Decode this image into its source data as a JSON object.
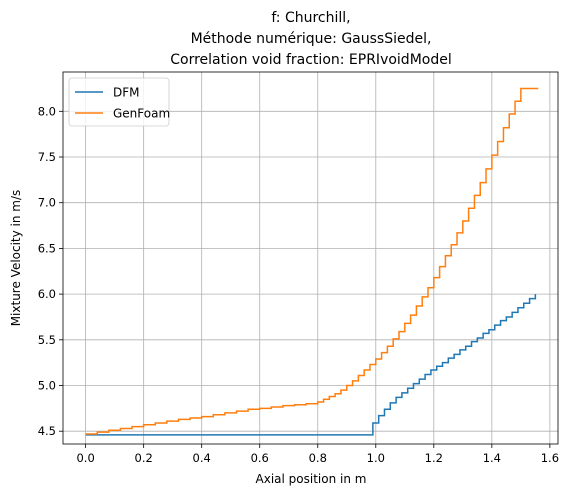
{
  "chart_data": {
    "type": "line",
    "title_lines": [
      "f: Churchill,",
      "Méthode numérique: GaussSiedel,",
      "Correlation void fraction: EPRIvoidModel"
    ],
    "xlabel": "Axial position in m",
    "ylabel": "Mixture Velocity in m/s",
    "xlim": [
      -0.078,
      1.628
    ],
    "ylim": [
      4.36,
      8.43
    ],
    "x_ticks": [
      "0.0",
      "0.2",
      "0.4",
      "0.6",
      "0.8",
      "1.0",
      "1.2",
      "1.4",
      "1.6"
    ],
    "x_tick_values": [
      0.0,
      0.2,
      0.4,
      0.6,
      0.8,
      1.0,
      1.2,
      1.4,
      1.6
    ],
    "y_ticks": [
      "4.5",
      "5.0",
      "5.5",
      "6.0",
      "6.5",
      "7.0",
      "7.5",
      "8.0"
    ],
    "y_tick_values": [
      4.5,
      5.0,
      5.5,
      6.0,
      6.5,
      7.0,
      7.5,
      8.0
    ],
    "grid": true,
    "legend_position": "top-left",
    "line_style": "steps",
    "series": [
      {
        "name": "DFM",
        "color": "#1f77b4",
        "x": [
          0.0,
          0.97,
          0.99,
          1.01,
          1.03,
          1.05,
          1.07,
          1.09,
          1.11,
          1.13,
          1.15,
          1.17,
          1.19,
          1.21,
          1.23,
          1.25,
          1.27,
          1.29,
          1.31,
          1.33,
          1.35,
          1.37,
          1.39,
          1.41,
          1.43,
          1.45,
          1.47,
          1.49,
          1.51,
          1.53,
          1.55
        ],
        "y": [
          4.46,
          4.46,
          4.59,
          4.67,
          4.74,
          4.81,
          4.87,
          4.92,
          4.97,
          5.02,
          5.07,
          5.12,
          5.17,
          5.21,
          5.25,
          5.3,
          5.34,
          5.39,
          5.43,
          5.48,
          5.52,
          5.57,
          5.61,
          5.66,
          5.71,
          5.75,
          5.8,
          5.85,
          5.9,
          5.95,
          6.0
        ]
      },
      {
        "name": "GenFoam",
        "color": "#ff7f0e",
        "x": [
          0.0,
          0.04,
          0.08,
          0.12,
          0.16,
          0.2,
          0.24,
          0.28,
          0.32,
          0.36,
          0.4,
          0.44,
          0.48,
          0.52,
          0.56,
          0.6,
          0.64,
          0.68,
          0.72,
          0.76,
          0.8,
          0.82,
          0.84,
          0.86,
          0.88,
          0.9,
          0.92,
          0.94,
          0.96,
          0.98,
          1.0,
          1.02,
          1.04,
          1.06,
          1.08,
          1.1,
          1.12,
          1.14,
          1.16,
          1.18,
          1.2,
          1.22,
          1.24,
          1.26,
          1.28,
          1.3,
          1.32,
          1.34,
          1.36,
          1.38,
          1.4,
          1.42,
          1.44,
          1.46,
          1.48,
          1.5,
          1.52,
          1.54,
          1.56
        ],
        "y": [
          4.47,
          4.49,
          4.51,
          4.53,
          4.55,
          4.57,
          4.59,
          4.61,
          4.63,
          4.645,
          4.66,
          4.68,
          4.7,
          4.72,
          4.74,
          4.75,
          4.765,
          4.78,
          4.79,
          4.8,
          4.82,
          4.85,
          4.88,
          4.91,
          4.95,
          5.0,
          5.05,
          5.11,
          5.17,
          5.23,
          5.29,
          5.36,
          5.43,
          5.51,
          5.59,
          5.68,
          5.77,
          5.87,
          5.97,
          6.07,
          6.18,
          6.3,
          6.42,
          6.54,
          6.67,
          6.8,
          6.94,
          7.08,
          7.22,
          7.37,
          7.52,
          7.67,
          7.82,
          7.97,
          8.11,
          8.25,
          8.25,
          8.25,
          8.25
        ]
      }
    ]
  }
}
